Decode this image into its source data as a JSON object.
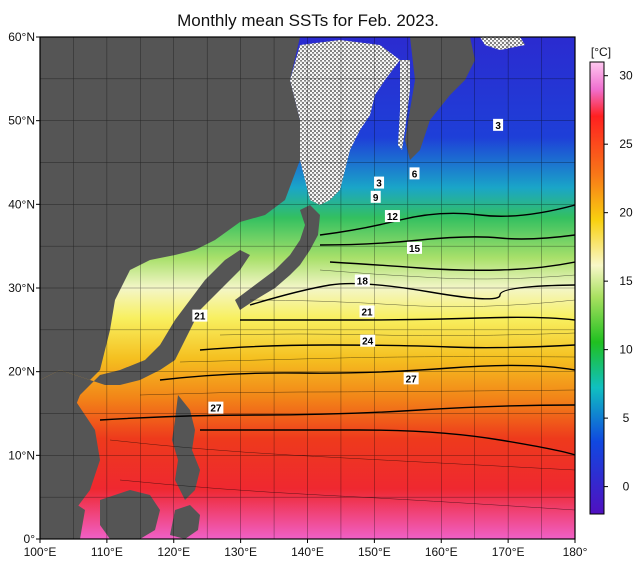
{
  "title": "Monthly mean SSTs for Feb. 2023.",
  "map": {
    "lon_range": [
      100,
      180
    ],
    "lat_range": [
      0,
      60
    ],
    "lon_ticks": [
      "100°E",
      "110°E",
      "120°E",
      "130°E",
      "140°E",
      "150°E",
      "160°E",
      "170°E",
      "180°"
    ],
    "lat_ticks": [
      "0°",
      "10°N",
      "20°N",
      "30°N",
      "40°N",
      "50°N",
      "60°N"
    ],
    "grid": true,
    "land_color": "#555555",
    "sea_ice": "hatched"
  },
  "colorbar": {
    "unit": "[°C]",
    "ticks": [
      "30",
      "25",
      "20",
      "15",
      "10",
      "5",
      "0"
    ],
    "range": [
      -2,
      31
    ]
  },
  "isotherm_labels": [
    {
      "text": "3",
      "lon": 168.5,
      "lat": 49.5
    },
    {
      "text": "6",
      "lon": 156,
      "lat": 43.7
    },
    {
      "text": "3",
      "lon": 150.7,
      "lat": 42.6
    },
    {
      "text": "9",
      "lon": 150.2,
      "lat": 40.9
    },
    {
      "text": "12",
      "lon": 152.7,
      "lat": 38.6
    },
    {
      "text": "15",
      "lon": 156,
      "lat": 34.8
    },
    {
      "text": "18",
      "lon": 148.2,
      "lat": 30.9
    },
    {
      "text": "21",
      "lon": 148.9,
      "lat": 27.2
    },
    {
      "text": "21",
      "lon": 123.9,
      "lat": 26.7
    },
    {
      "text": "24",
      "lon": 149,
      "lat": 23.7
    },
    {
      "text": "27",
      "lon": 155.5,
      "lat": 19.2
    },
    {
      "text": "27",
      "lon": 126.3,
      "lat": 15.7
    }
  ]
}
